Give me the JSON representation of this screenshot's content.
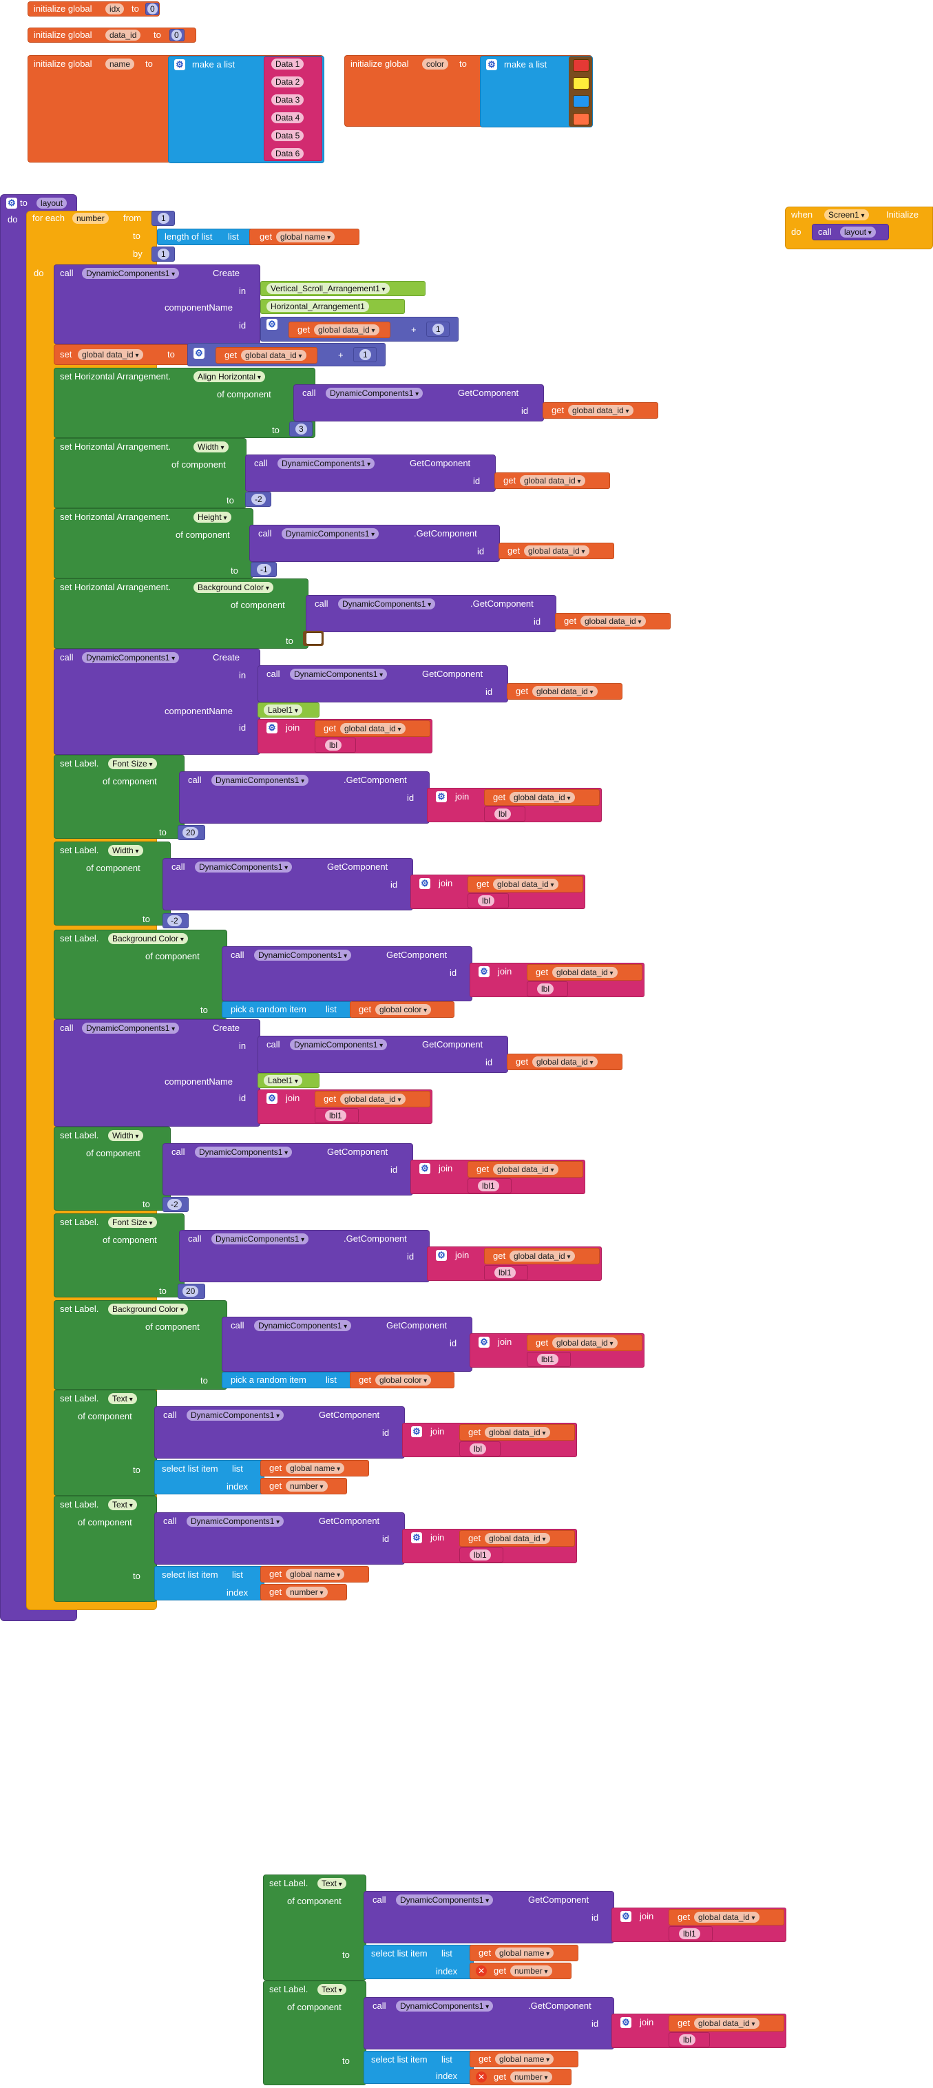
{
  "labels": {
    "initialize_global": "initialize global",
    "to": "to",
    "make_a_list": "make a list",
    "do": "do",
    "for_each": "for each",
    "from": "from",
    "by": "by",
    "length_of_list": "length of list",
    "list": "list",
    "get": "get",
    "call": "call",
    "in": "in",
    "componentName": "componentName",
    "id": "id",
    "set": "set",
    "of_component": "of component",
    "join": "join",
    "pick_random": "pick a random item",
    "select_list_item": "select list item",
    "index": "index",
    "when": "when",
    "plus": "+",
    "create": "Create",
    "get_component": "GetComponent",
    "get_component_dot": ".GetComponent",
    "set_ha": "set Horizontal Arrangement.",
    "set_label": "set Label.",
    "set_label_nodot": "set Label",
    "initialize": "Initialize"
  },
  "globals": {
    "idx": {
      "name": "idx",
      "value": "0"
    },
    "data_id": {
      "name": "data_id",
      "value": "0"
    },
    "name": {
      "name": "name",
      "items": [
        "Data 1",
        "Data 2",
        "Data 3",
        "Data 4",
        "Data 5",
        "Data 6"
      ]
    },
    "color": {
      "name": "color",
      "swatches": [
        "#e53935",
        "#ffeb3b",
        "#2196f3",
        "#ff7043"
      ]
    }
  },
  "procedure": {
    "name": "layout",
    "loop_var": "number",
    "from": "1",
    "by": "1"
  },
  "components": {
    "dyn": "DynamicComponents1",
    "vsa": "Vertical_Scroll_Arrangement1",
    "ha": "Horizontal_Arrangement1",
    "label1": "Label1",
    "screen": "Screen1"
  },
  "vars": {
    "g_name": "global name",
    "g_data_id": "global data_id",
    "g_color": "global color",
    "number": "number"
  },
  "props": {
    "align_h": "Align Horizontal",
    "width": "Width",
    "height": "Height",
    "bg": "Background Color",
    "font_size": "Font Size",
    "text": "Text"
  },
  "values": {
    "one": "1",
    "three": "3",
    "neg2": "-2",
    "neg1": "-1",
    "twenty": "20",
    "lbl": "lbl",
    "lbl1": "lbl1"
  }
}
